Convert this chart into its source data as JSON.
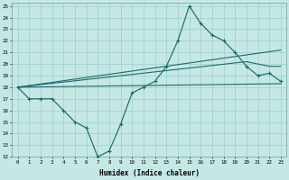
{
  "xlabel": "Humidex (Indice chaleur)",
  "bg_color": "#c5e8e5",
  "grid_color": "#9ecece",
  "line_color": "#1a6b6b",
  "xlim": [
    -0.5,
    23.5
  ],
  "ylim": [
    12,
    25.3
  ],
  "xticks": [
    0,
    1,
    2,
    3,
    4,
    5,
    6,
    7,
    8,
    9,
    10,
    11,
    12,
    13,
    14,
    15,
    16,
    17,
    18,
    19,
    20,
    21,
    22,
    23
  ],
  "yticks": [
    12,
    13,
    14,
    15,
    16,
    17,
    18,
    19,
    20,
    21,
    22,
    23,
    24,
    25
  ],
  "line1_x": [
    0,
    1,
    2,
    3,
    4,
    5,
    6,
    7,
    8,
    9,
    10,
    11,
    12,
    13,
    14,
    15,
    16,
    17,
    18,
    19,
    20,
    21,
    22,
    23
  ],
  "line1_y": [
    18,
    17,
    17,
    17,
    16,
    15,
    14.5,
    12,
    12.5,
    14.8,
    17.5,
    18,
    18.5,
    19.8,
    22,
    25,
    23.5,
    22.5,
    22,
    21,
    19.8,
    19,
    19.2,
    18.5
  ],
  "line2_x": [
    0,
    23
  ],
  "line2_y": [
    18,
    21.2
  ],
  "line3_x": [
    0,
    20,
    21,
    22,
    23
  ],
  "line3_y": [
    18,
    20.2,
    20.0,
    19.8,
    19.8
  ],
  "line4_x": [
    0,
    23
  ],
  "line4_y": [
    18,
    18.3
  ]
}
